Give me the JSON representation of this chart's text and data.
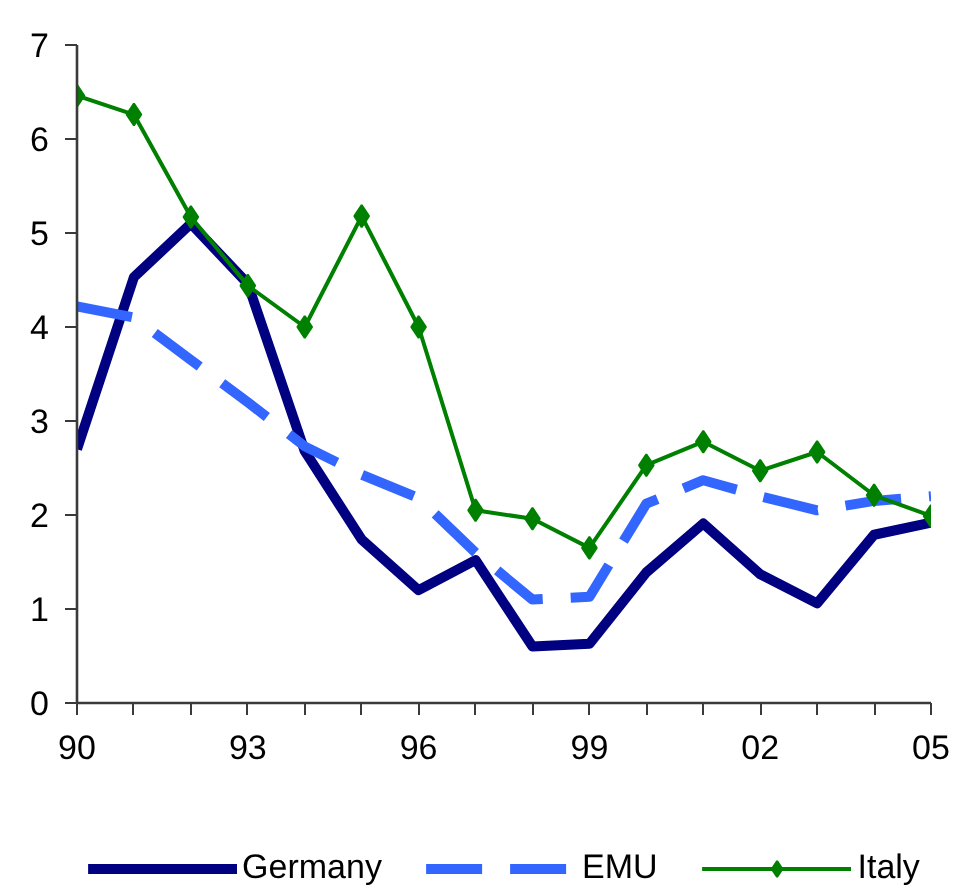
{
  "chart_data": {
    "type": "line",
    "x": [
      1990,
      1991,
      1992,
      1993,
      1994,
      1995,
      1996,
      1997,
      1998,
      1999,
      2000,
      2001,
      2002,
      2003,
      2004,
      2005
    ],
    "series": [
      {
        "name": "Germany",
        "color": "#000080",
        "marker": "none",
        "line_style": "solid",
        "values": [
          2.7,
          4.53,
          5.1,
          4.46,
          2.68,
          1.74,
          1.2,
          1.52,
          0.6,
          0.63,
          1.39,
          1.91,
          1.37,
          1.06,
          1.79,
          1.92
        ]
      },
      {
        "name": "EMU",
        "color": "#3366ff",
        "marker": "none",
        "line_style": "dashed",
        "values": [
          4.22,
          4.1,
          3.65,
          3.2,
          2.73,
          2.43,
          2.18,
          1.6,
          1.1,
          1.13,
          2.12,
          2.37,
          2.2,
          2.05,
          2.15,
          2.2
        ]
      },
      {
        "name": "Italy",
        "color": "#008000",
        "marker": "diamond",
        "line_style": "solid",
        "values": [
          6.46,
          6.26,
          5.17,
          4.44,
          4.0,
          5.18,
          4.0,
          2.05,
          1.96,
          1.65,
          2.53,
          2.78,
          2.47,
          2.67,
          2.21,
          1.99
        ]
      }
    ],
    "xlim": [
      1990,
      2005
    ],
    "xticks": [
      {
        "value": 1990,
        "label": "90"
      },
      {
        "value": 1991,
        "label": null
      },
      {
        "value": 1992,
        "label": null
      },
      {
        "value": 1993,
        "label": "93"
      },
      {
        "value": 1994,
        "label": null
      },
      {
        "value": 1995,
        "label": null
      },
      {
        "value": 1996,
        "label": "96"
      },
      {
        "value": 1997,
        "label": null
      },
      {
        "value": 1998,
        "label": null
      },
      {
        "value": 1999,
        "label": "99"
      },
      {
        "value": 2000,
        "label": null
      },
      {
        "value": 2001,
        "label": null
      },
      {
        "value": 2002,
        "label": "02"
      },
      {
        "value": 2003,
        "label": null
      },
      {
        "value": 2004,
        "label": null
      },
      {
        "value": 2005,
        "label": "05"
      }
    ],
    "ylim": [
      0,
      7
    ],
    "yticks": [
      0,
      1,
      2,
      3,
      4,
      5,
      6,
      7
    ],
    "legend": "bottom"
  }
}
